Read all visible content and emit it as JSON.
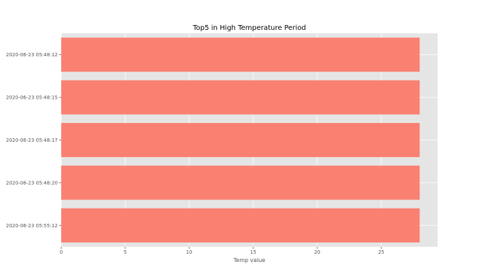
{
  "chart_data": {
    "type": "bar",
    "orientation": "horizontal",
    "title": "Top5 in High Temperature Period",
    "xlabel": "Temp value",
    "ylabel": "",
    "categories": [
      "2020-06-23 05:48:12",
      "2020-06-23 05:48:15",
      "2020-06-23 05:48:17",
      "2020-06-23 05:48:20",
      "2020-06-23 05:55:12"
    ],
    "values": [
      28,
      28,
      28,
      28,
      28
    ],
    "xlim": [
      0,
      29.4
    ],
    "xticks": [
      "0",
      "5",
      "10",
      "15",
      "20",
      "25"
    ],
    "grid": true,
    "bar_color": "#fa8072",
    "background_color": "#e5e5e5"
  }
}
